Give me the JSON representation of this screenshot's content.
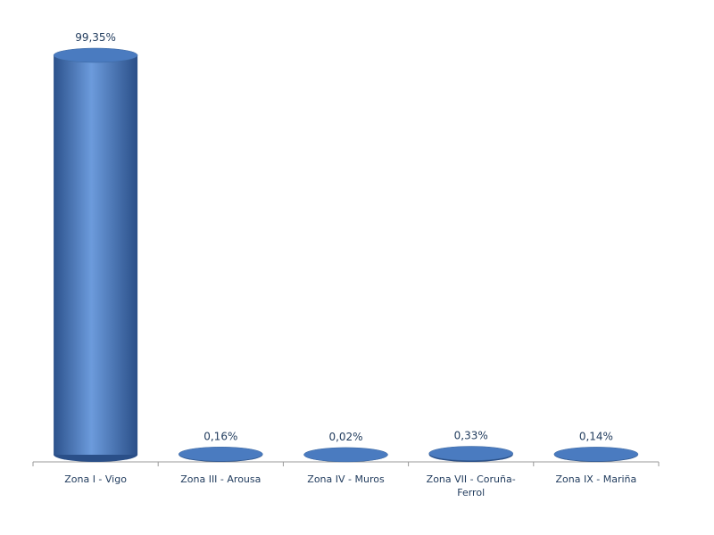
{
  "chart_data": {
    "type": "bar3d",
    "categories": [
      "Zona I - Vigo",
      "Zona III - Arousa",
      "Zona IV - Muros",
      "Zona VII - Coruña-Ferrol",
      "Zona IX - Mariña"
    ],
    "values": [
      99.35,
      0.16,
      0.02,
      0.33,
      0.14
    ],
    "value_labels": [
      "99,35%",
      "0,16%",
      "0,02%",
      "0,33%",
      "0,14%"
    ],
    "color": "#4a7bc0"
  }
}
